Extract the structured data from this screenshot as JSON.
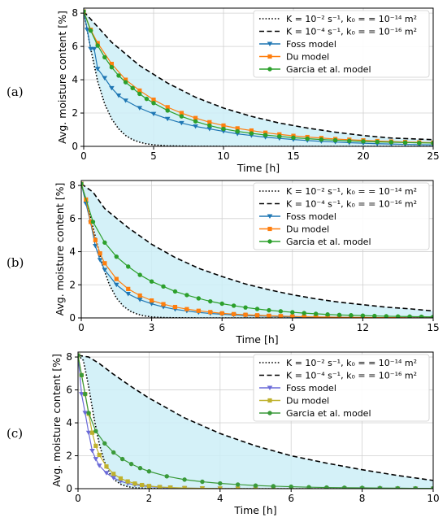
{
  "figure": {
    "panels": [
      {
        "label": "(a)",
        "legend": {
          "entries": [
            {
              "key": "fast",
              "line": "dotted",
              "color": "#000000",
              "text": "K = 10⁻² s⁻¹, k₀ = = 10⁻¹⁴ m²"
            },
            {
              "key": "slow",
              "line": "dashed",
              "color": "#000000",
              "text": "K = 10⁻⁴ s⁻¹, k₀ = = 10⁻¹⁶ m²"
            },
            {
              "key": "foss",
              "marker": "triangle-down",
              "color": "#1f77b4",
              "text": "Foss model"
            },
            {
              "key": "du",
              "marker": "square",
              "color": "#ff7f0e",
              "text": "Du model"
            },
            {
              "key": "garcia",
              "marker": "circle",
              "color": "#2ca02c",
              "text": "Garcia et al. model"
            }
          ]
        }
      },
      {
        "label": "(b)",
        "legend": {
          "entries": [
            {
              "key": "fast",
              "line": "dotted",
              "color": "#000000",
              "text": "K = 10⁻² s⁻¹, k₀ = = 10⁻¹⁴ m²"
            },
            {
              "key": "slow",
              "line": "dashed",
              "color": "#000000",
              "text": "K = 10⁻⁴ s⁻¹, k₀ = = 10⁻¹⁶ m²"
            },
            {
              "key": "foss",
              "marker": "triangle-down",
              "color": "#1f77b4",
              "text": "Foss model"
            },
            {
              "key": "du",
              "marker": "square",
              "color": "#ff7f0e",
              "text": "Du model"
            },
            {
              "key": "garcia",
              "marker": "circle",
              "color": "#2ca02c",
              "text": "Garcia et al. model"
            }
          ]
        }
      },
      {
        "label": "(c)",
        "legend": {
          "entries": [
            {
              "key": "fast",
              "line": "dotted",
              "color": "#000000",
              "text": "K = 10⁻² s⁻¹, k₀ = = 10⁻¹⁴ m²"
            },
            {
              "key": "slow",
              "line": "dashed",
              "color": "#000000",
              "text": "K = 10⁻⁴ s⁻¹, k₀ = = 10⁻¹⁶ m²"
            },
            {
              "key": "foss",
              "marker": "triangle-down",
              "color": "#6a6ad8",
              "text": "Foss model"
            },
            {
              "key": "du",
              "marker": "square",
              "color": "#bfb12c",
              "text": "Du model"
            },
            {
              "key": "garcia",
              "marker": "circle",
              "color": "#3a9a3a",
              "text": "Garcia et al. model"
            }
          ]
        }
      }
    ]
  },
  "chart_data": [
    {
      "type": "line",
      "panel": "(a)",
      "xlabel": "Time [h]",
      "ylabel": "Avg. moisture content [%]",
      "xlim": [
        0,
        25
      ],
      "ylim": [
        0,
        8.3
      ],
      "xticks": [
        "0",
        "5",
        "10",
        "15",
        "20",
        "25"
      ],
      "yticks": [
        "0",
        "2",
        "4",
        "6",
        "8"
      ],
      "grid": true,
      "legend_position": "top-right",
      "shaded_region": {
        "between": [
          "fast",
          "slow"
        ],
        "color": "#cdeef7"
      },
      "series": [
        {
          "key": "fast",
          "style": "dotted",
          "color": "#000000",
          "x": [
            0,
            0.5,
            1,
            1.5,
            2,
            2.5,
            3,
            3.5,
            4,
            4.5,
            5,
            6,
            8,
            10,
            15,
            20,
            25
          ],
          "y": [
            8.1,
            5.85,
            3.9,
            2.55,
            1.65,
            1.05,
            0.65,
            0.4,
            0.25,
            0.15,
            0.09,
            0.03,
            0.005,
            0,
            0,
            0,
            0
          ]
        },
        {
          "key": "slow",
          "style": "dashed",
          "color": "#000000",
          "x": [
            0,
            2,
            4,
            6,
            8,
            10,
            12,
            14,
            16,
            18,
            20,
            22,
            25
          ],
          "y": [
            8.1,
            6.25,
            4.85,
            3.8,
            2.95,
            2.3,
            1.8,
            1.4,
            1.1,
            0.85,
            0.65,
            0.5,
            0.4
          ]
        },
        {
          "key": "foss",
          "marker": "triangle-down",
          "color": "#1f77b4",
          "x": [
            0,
            0.25,
            0.5,
            0.75,
            1,
            1.5,
            2,
            2.5,
            3,
            4,
            5,
            6,
            7,
            8,
            9,
            10,
            11,
            12,
            13,
            14,
            15,
            16,
            17,
            18,
            19,
            20,
            21,
            22,
            23,
            24,
            25
          ],
          "y": [
            8.1,
            7.0,
            5.85,
            5.85,
            4.65,
            4.1,
            3.5,
            3.05,
            2.75,
            2.3,
            1.95,
            1.65,
            1.4,
            1.2,
            1.05,
            0.9,
            0.75,
            0.65,
            0.55,
            0.48,
            0.41,
            0.35,
            0.3,
            0.26,
            0.22,
            0.19,
            0.16,
            0.14,
            0.12,
            0.1,
            0.09
          ]
        },
        {
          "key": "du",
          "marker": "square",
          "color": "#ff7f0e",
          "x": [
            0,
            0.5,
            1,
            2,
            3,
            4,
            5,
            6,
            7,
            8,
            9,
            10,
            11,
            12,
            13,
            14,
            15,
            16,
            17,
            18,
            19,
            20,
            21,
            22,
            23,
            24,
            25
          ],
          "y": [
            8.1,
            7.0,
            6.2,
            4.95,
            4.0,
            3.35,
            2.8,
            2.35,
            2.0,
            1.7,
            1.45,
            1.25,
            1.08,
            0.95,
            0.82,
            0.72,
            0.63,
            0.56,
            0.5,
            0.44,
            0.4,
            0.36,
            0.32,
            0.29,
            0.26,
            0.24,
            0.22
          ]
        },
        {
          "key": "garcia",
          "marker": "circle",
          "color": "#2ca02c",
          "x": [
            0,
            0.5,
            1,
            1.5,
            2,
            2.5,
            3,
            3.5,
            4,
            4.5,
            5,
            6,
            7,
            8,
            9,
            10,
            11,
            12,
            13,
            14,
            15,
            16,
            17,
            18,
            19,
            20,
            21,
            22,
            23,
            24,
            25
          ],
          "y": [
            8.1,
            6.95,
            6.05,
            5.35,
            4.75,
            4.25,
            3.85,
            3.5,
            3.15,
            2.85,
            2.6,
            2.15,
            1.8,
            1.5,
            1.25,
            1.05,
            0.9,
            0.78,
            0.68,
            0.6,
            0.52,
            0.46,
            0.41,
            0.37,
            0.33,
            0.3,
            0.27,
            0.25,
            0.23,
            0.21,
            0.2
          ]
        }
      ]
    },
    {
      "type": "line",
      "panel": "(b)",
      "xlabel": "Time [h]",
      "ylabel": "Avg. moisture content [%]",
      "xlim": [
        0,
        15
      ],
      "ylim": [
        0,
        8.3
      ],
      "xticks": [
        "0",
        "3",
        "6",
        "9",
        "12",
        "15"
      ],
      "yticks": [
        "0",
        "2",
        "4",
        "6",
        "8"
      ],
      "grid": true,
      "legend_position": "top-right",
      "shaded_region": {
        "between": [
          "fast",
          "slow"
        ],
        "color": "#cdeef7"
      },
      "series": [
        {
          "key": "fast",
          "style": "dotted",
          "color": "#000000",
          "x": [
            0,
            0.3,
            0.6,
            0.9,
            1.2,
            1.5,
            1.8,
            2.1,
            2.4,
            2.7,
            3,
            3.5,
            4,
            5,
            6,
            9,
            15
          ],
          "y": [
            8.1,
            6.6,
            4.9,
            3.2,
            2.0,
            1.2,
            0.7,
            0.4,
            0.22,
            0.12,
            0.06,
            0.02,
            0.01,
            0,
            0,
            0,
            0
          ]
        },
        {
          "key": "slow",
          "style": "dashed",
          "color": "#000000",
          "x": [
            0,
            0.5,
            1,
            2,
            3,
            4,
            5,
            6,
            7,
            8,
            9,
            10,
            11,
            12,
            13,
            14,
            15
          ],
          "y": [
            8.1,
            7.6,
            6.6,
            5.45,
            4.45,
            3.65,
            3.0,
            2.5,
            2.05,
            1.7,
            1.4,
            1.15,
            0.95,
            0.8,
            0.65,
            0.55,
            0.42
          ]
        },
        {
          "key": "foss",
          "marker": "triangle-down",
          "color": "#1f77b4",
          "x": [
            0,
            0.2,
            0.4,
            0.6,
            0.8,
            1,
            1.5,
            2,
            2.5,
            3,
            3.5,
            4,
            4.5,
            5,
            5.5,
            6,
            6.5,
            7,
            7.5,
            8,
            8.5,
            9,
            9.5,
            10,
            10.5,
            11,
            11.5,
            12,
            12.5,
            13,
            13.5,
            14,
            14.5,
            15
          ],
          "y": [
            8.1,
            6.9,
            5.75,
            4.35,
            3.5,
            2.9,
            2.0,
            1.45,
            1.1,
            0.85,
            0.66,
            0.52,
            0.42,
            0.33,
            0.27,
            0.22,
            0.18,
            0.14,
            0.12,
            0.1,
            0.08,
            0.06,
            0.05,
            0.04,
            0.03,
            0.03,
            0.02,
            0.02,
            0.02,
            0.01,
            0.01,
            0.01,
            0.01,
            0.01
          ]
        },
        {
          "key": "du",
          "marker": "square",
          "color": "#ff7f0e",
          "x": [
            0,
            0.2,
            0.4,
            0.6,
            0.8,
            1,
            1.5,
            2,
            2.5,
            3,
            3.5,
            4,
            4.5,
            5,
            5.5,
            6,
            6.5,
            7,
            7.5,
            8,
            8.5,
            9,
            9.5,
            10,
            10.5,
            11,
            11.5,
            12,
            12.5,
            13,
            13.5,
            14,
            14.5,
            15
          ],
          "y": [
            8.1,
            7.15,
            5.8,
            4.7,
            3.9,
            3.3,
            2.35,
            1.75,
            1.35,
            1.05,
            0.83,
            0.66,
            0.53,
            0.43,
            0.35,
            0.28,
            0.23,
            0.19,
            0.16,
            0.13,
            0.11,
            0.09,
            0.07,
            0.06,
            0.05,
            0.04,
            0.03,
            0.03,
            0.02,
            0.02,
            0.02,
            0.01,
            0.01,
            0.01
          ]
        },
        {
          "key": "garcia",
          "marker": "circle",
          "color": "#2ca02c",
          "x": [
            0,
            0.5,
            1,
            1.5,
            2,
            2.5,
            3,
            3.5,
            4,
            4.5,
            5,
            5.5,
            6,
            6.5,
            7,
            7.5,
            8,
            8.5,
            9,
            9.5,
            10,
            10.5,
            11,
            11.5,
            12,
            12.5,
            13,
            13.5,
            14,
            14.5,
            15
          ],
          "y": [
            8.1,
            5.8,
            4.55,
            3.7,
            3.1,
            2.6,
            2.2,
            1.9,
            1.6,
            1.38,
            1.18,
            1.0,
            0.86,
            0.74,
            0.63,
            0.54,
            0.46,
            0.4,
            0.34,
            0.29,
            0.25,
            0.21,
            0.18,
            0.16,
            0.14,
            0.12,
            0.1,
            0.09,
            0.08,
            0.07,
            0.06
          ]
        }
      ]
    },
    {
      "type": "line",
      "panel": "(c)",
      "xlabel": "Time [h]",
      "ylabel": "Avg. moisture content [%]",
      "xlim": [
        0,
        10
      ],
      "ylim": [
        0,
        8.3
      ],
      "xticks": [
        "0",
        "2",
        "4",
        "6",
        "8",
        "10"
      ],
      "yticks": [
        "0",
        "2",
        "4",
        "6",
        "8"
      ],
      "grid": true,
      "legend_position": "top-right",
      "shaded_region": {
        "between": [
          "fast",
          "slow"
        ],
        "color": "#cdeef7"
      },
      "series": [
        {
          "key": "fast",
          "style": "dotted",
          "color": "#000000",
          "x": [
            0,
            0.15,
            0.3,
            0.45,
            0.6,
            0.75,
            0.9,
            1.05,
            1.2,
            1.4,
            1.6,
            2,
            3,
            10
          ],
          "y": [
            8.1,
            7.8,
            6.2,
            4.3,
            2.7,
            1.6,
            0.9,
            0.5,
            0.27,
            0.12,
            0.05,
            0.01,
            0,
            0
          ]
        },
        {
          "key": "slow",
          "style": "dashed",
          "color": "#000000",
          "x": [
            0,
            0.3,
            0.6,
            1,
            1.5,
            2,
            3,
            4,
            5,
            6,
            7,
            8,
            9,
            10
          ],
          "y": [
            8.1,
            8.0,
            7.6,
            6.95,
            6.2,
            5.5,
            4.3,
            3.35,
            2.6,
            2.0,
            1.55,
            1.15,
            0.8,
            0.5
          ]
        },
        {
          "key": "foss",
          "marker": "triangle-down",
          "color": "#6a6ad8",
          "x": [
            0,
            0.1,
            0.2,
            0.3,
            0.4,
            0.5,
            0.6,
            0.8,
            1,
            1.2,
            1.4,
            1.6,
            1.8,
            2,
            2.3,
            2.6,
            3,
            3.5,
            4,
            4.5,
            5,
            5.5,
            6,
            6.5,
            7,
            7.5,
            8,
            8.5,
            9,
            9.5,
            10
          ],
          "y": [
            8.1,
            5.75,
            4.6,
            3.4,
            2.3,
            1.8,
            1.4,
            0.95,
            0.65,
            0.45,
            0.32,
            0.23,
            0.17,
            0.12,
            0.08,
            0.05,
            0.03,
            0.02,
            0.01,
            0.01,
            0,
            0,
            0,
            0,
            0,
            0,
            0,
            0,
            0,
            0,
            0
          ]
        },
        {
          "key": "du",
          "marker": "square",
          "color": "#bfb12c",
          "x": [
            0,
            0.1,
            0.2,
            0.3,
            0.4,
            0.5,
            0.6,
            0.8,
            1,
            1.2,
            1.4,
            1.6,
            1.8,
            2,
            2.3,
            2.6,
            3,
            3.5,
            4,
            4.5,
            5,
            5.5,
            6,
            6.5,
            7,
            7.5,
            8,
            8.5,
            9,
            9.5,
            10
          ],
          "y": [
            8.1,
            6.9,
            5.75,
            4.55,
            3.4,
            2.6,
            2.05,
            1.35,
            0.9,
            0.62,
            0.44,
            0.31,
            0.22,
            0.16,
            0.1,
            0.07,
            0.04,
            0.02,
            0.01,
            0.01,
            0,
            0,
            0,
            0,
            0,
            0,
            0,
            0,
            0,
            0,
            0
          ]
        },
        {
          "key": "garcia",
          "marker": "circle",
          "color": "#3a9a3a",
          "x": [
            0,
            0.1,
            0.2,
            0.3,
            0.5,
            0.75,
            1,
            1.25,
            1.5,
            1.75,
            2,
            2.5,
            3,
            3.5,
            4,
            4.5,
            5,
            5.5,
            6,
            6.5,
            7,
            7.5,
            8,
            8.5,
            9,
            9.5,
            10
          ],
          "y": [
            8.1,
            6.9,
            5.75,
            4.6,
            3.5,
            2.75,
            2.2,
            1.8,
            1.5,
            1.25,
            1.05,
            0.75,
            0.55,
            0.42,
            0.32,
            0.25,
            0.19,
            0.15,
            0.12,
            0.09,
            0.07,
            0.06,
            0.05,
            0.04,
            0.03,
            0.02,
            0.02
          ]
        }
      ]
    }
  ]
}
